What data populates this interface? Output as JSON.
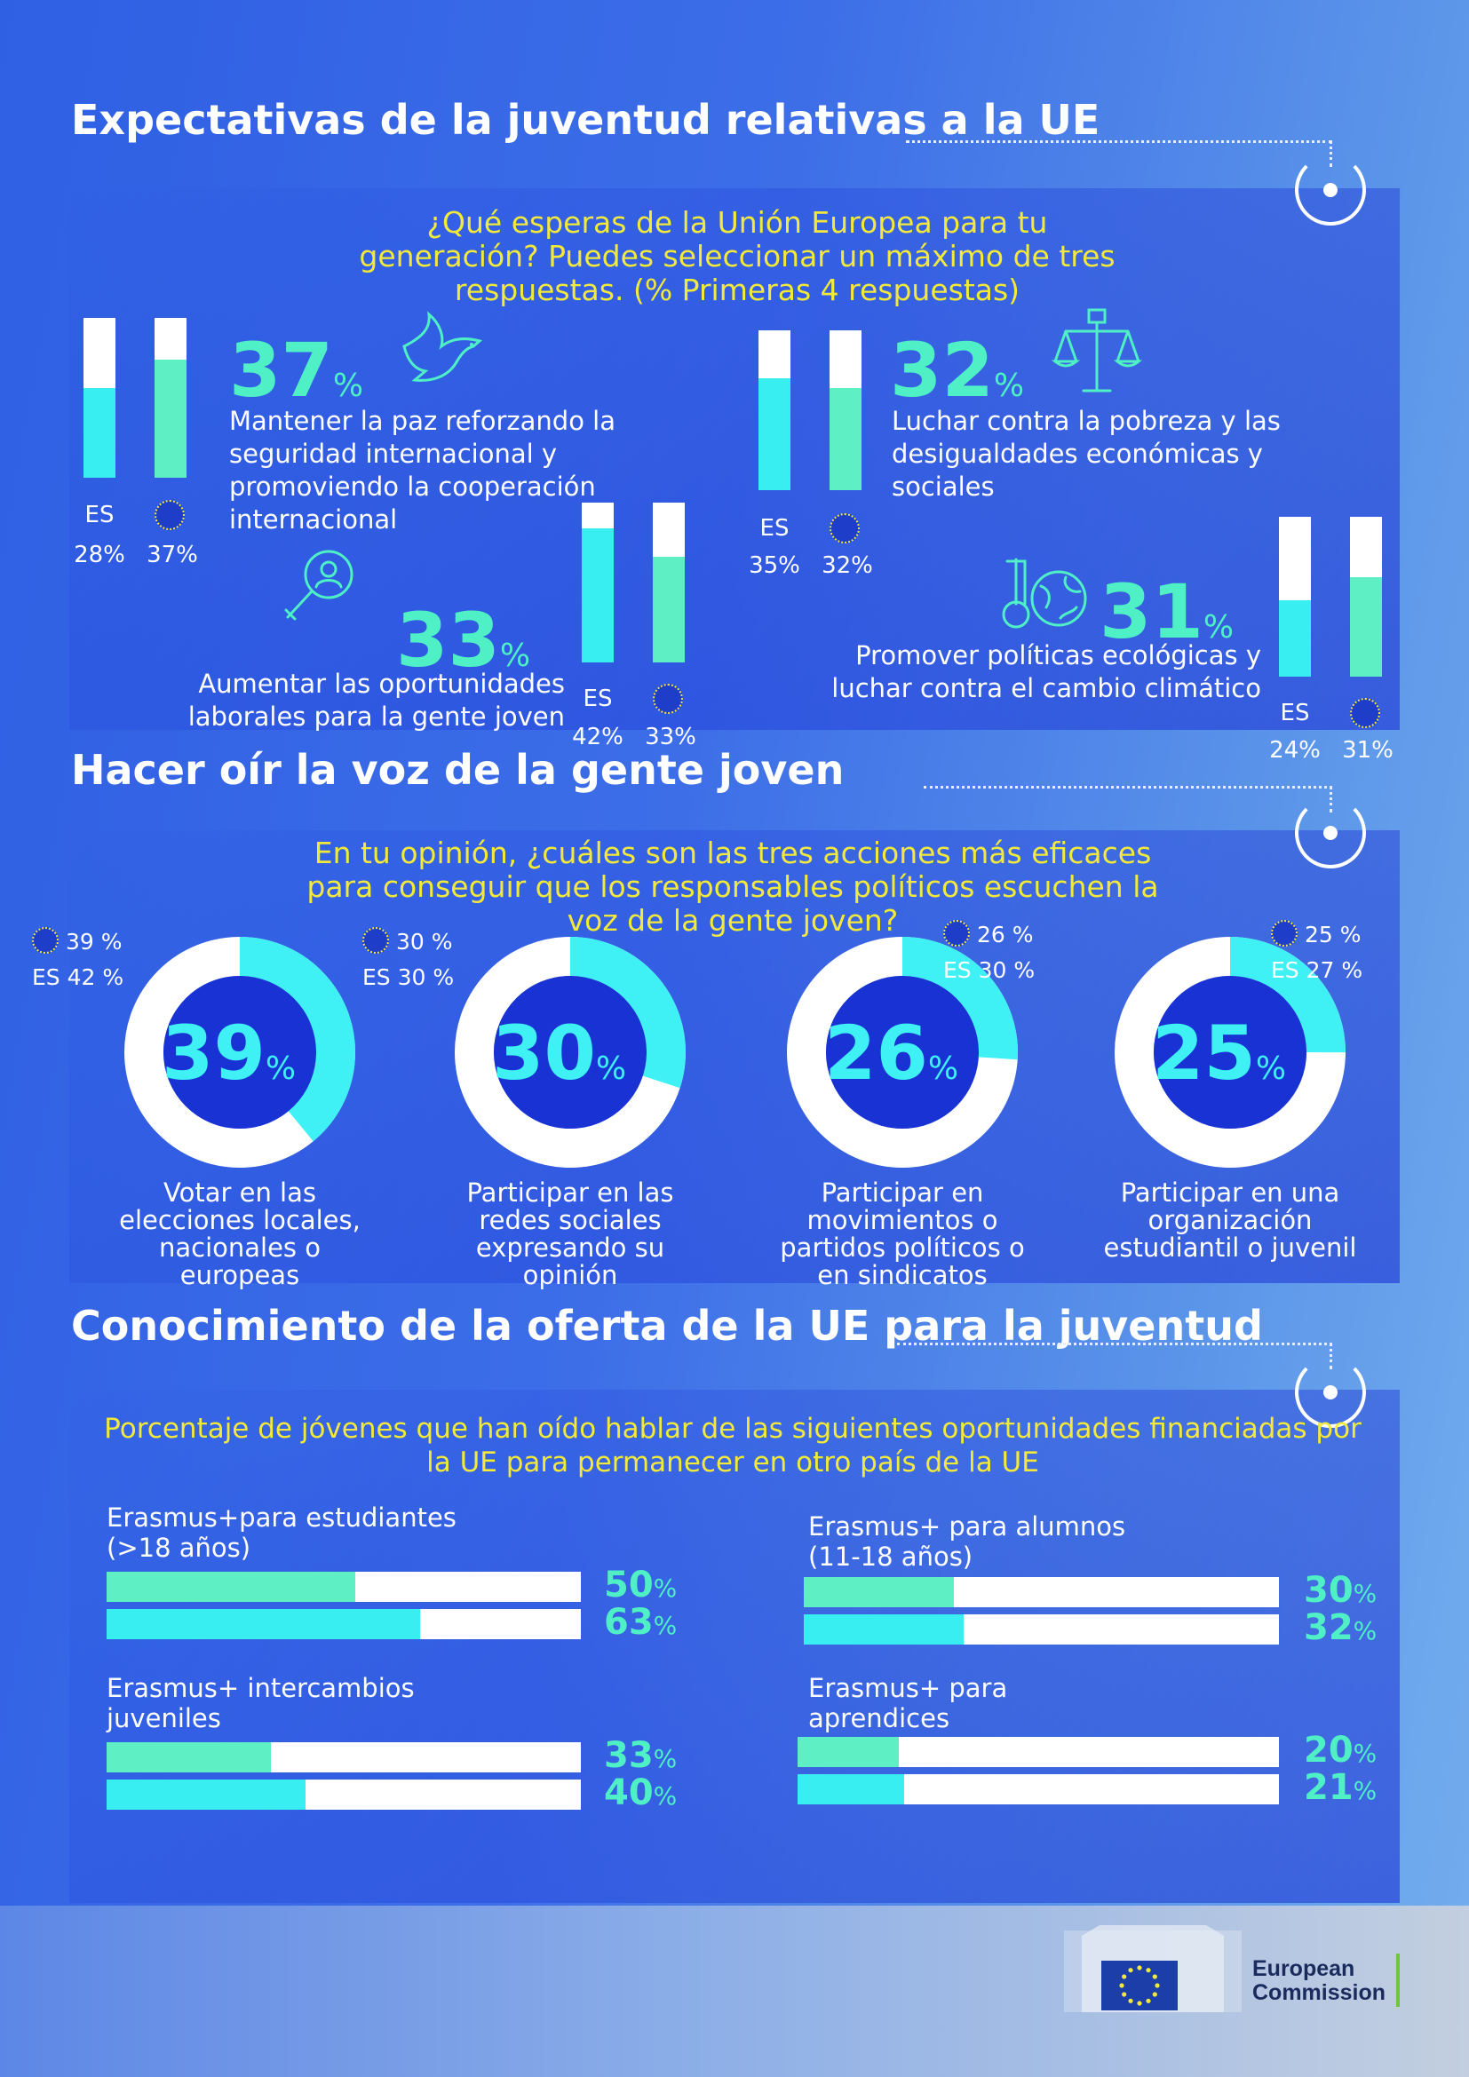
{
  "sections": {
    "s1_title": "Expectativas de la juventud relativas a la UE",
    "s1_question": "¿Qué esperas de la Unión Europea para tu generación? Puedes seleccionar un máximo de tres respuestas. (% Primeras 4 respuestas)",
    "s2_title": "Hacer oír la voz de la gente joven",
    "s2_question": "En tu opinión, ¿cuáles son las tres acciones más eficaces para conseguir que los responsables políticos escuchen la voz de la gente joven?",
    "s3_title": "Conocimiento de la oferta de la UE para la juventud",
    "s3_question": "Porcentaje de jóvenes que han oído hablar de las siguientes oportunidades financiadas por la UE para permanecer en otro país de la UE"
  },
  "colors": {
    "es_bar": "#39eef0",
    "eu_bar": "#5ef0c4",
    "accent_green": "#4ff0c6",
    "yellow": "#f2e93a",
    "donut_fill": "#3ff0f5",
    "donut_center": "#1932d4"
  },
  "chart_data": [
    {
      "type": "bar",
      "title": "¿Qué esperas de la Unión Europea para tu generación?",
      "series_labels": [
        "ES",
        "EU"
      ],
      "items": [
        {
          "headline": "37",
          "pct_sign": "%",
          "label": "Mantener la paz reforzando la seguridad internacional y promoviendo la cooperación internacional",
          "es_label": "ES",
          "es_value": 28,
          "es_text": "28%",
          "eu_value": 37,
          "eu_text": "37%",
          "icon": "dove-icon"
        },
        {
          "headline": "32",
          "pct_sign": "%",
          "label": "Luchar contra la pobreza y las desigualdades económicas y sociales",
          "es_label": "ES",
          "es_value": 35,
          "es_text": "35%",
          "eu_value": 32,
          "eu_text": "32%",
          "icon": "justice-scale-icon"
        },
        {
          "headline": "33",
          "pct_sign": "%",
          "label": "Aumentar las oportunidades laborales para la gente joven",
          "es_label": "ES",
          "es_value": 42,
          "es_text": "42%",
          "eu_value": 33,
          "eu_text": "33%",
          "icon": "job-search-icon"
        },
        {
          "headline": "31",
          "pct_sign": "%",
          "label": "Promover políticas ecológicas y luchar contra el cambio climático",
          "es_label": "ES",
          "es_value": 24,
          "es_text": "24%",
          "eu_value": 31,
          "eu_text": "31%",
          "icon": "thermometer-globe-icon"
        }
      ]
    },
    {
      "type": "pie",
      "title": "En tu opinión, ¿cuáles son las tres acciones más eficaces para conseguir que los responsables políticos escuchen la voz de la gente joven?",
      "items": [
        {
          "value": 39,
          "big": "39",
          "pct_sign": "%",
          "eu_text": "39 %",
          "es_label": "ES",
          "es_text": "42 %",
          "label": "Votar en las elecciones locales, nacionales o europeas"
        },
        {
          "value": 30,
          "big": "30",
          "pct_sign": "%",
          "eu_text": "30 %",
          "es_label": "ES",
          "es_text": "30 %",
          "label": "Participar en las redes sociales expresando su opinión"
        },
        {
          "value": 26,
          "big": "26",
          "pct_sign": "%",
          "eu_text": "26 %",
          "es_label": "ES",
          "es_text": "30 %",
          "label": "Participar en movimientos o partidos políticos o en sindicatos"
        },
        {
          "value": 25,
          "big": "25",
          "pct_sign": "%",
          "eu_text": "25 %",
          "es_label": "ES",
          "es_text": "27 %",
          "label": "Participar en una organización estudiantil o juvenil"
        }
      ]
    },
    {
      "type": "bar",
      "title": "Porcentaje de jóvenes que han oído hablar de las siguientes oportunidades financiadas por la UE para permanecer en otro país de la UE",
      "items": [
        {
          "label_line1": "Erasmus+para estudiantes",
          "label_line2": "(>18 años)",
          "v1": 50,
          "t1": "50",
          "v2": 63,
          "t2": "63",
          "pct_sign": "%"
        },
        {
          "label_line1": "Erasmus+ para alumnos",
          "label_line2": "(11-18 años)",
          "v1": 30,
          "t1": "30",
          "v2": 32,
          "t2": "32",
          "pct_sign": "%"
        },
        {
          "label_line1": "Erasmus+ intercambios",
          "label_line2": "juveniles",
          "v1": 33,
          "t1": "33",
          "v2": 40,
          "t2": "40",
          "pct_sign": "%"
        },
        {
          "label_line1": "Erasmus+ para",
          "label_line2": "aprendices",
          "v1": 20,
          "t1": "20",
          "v2": 21,
          "t2": "21",
          "pct_sign": "%"
        }
      ]
    }
  ],
  "footer": {
    "logo_line1": "European",
    "logo_line2": "Commission"
  }
}
